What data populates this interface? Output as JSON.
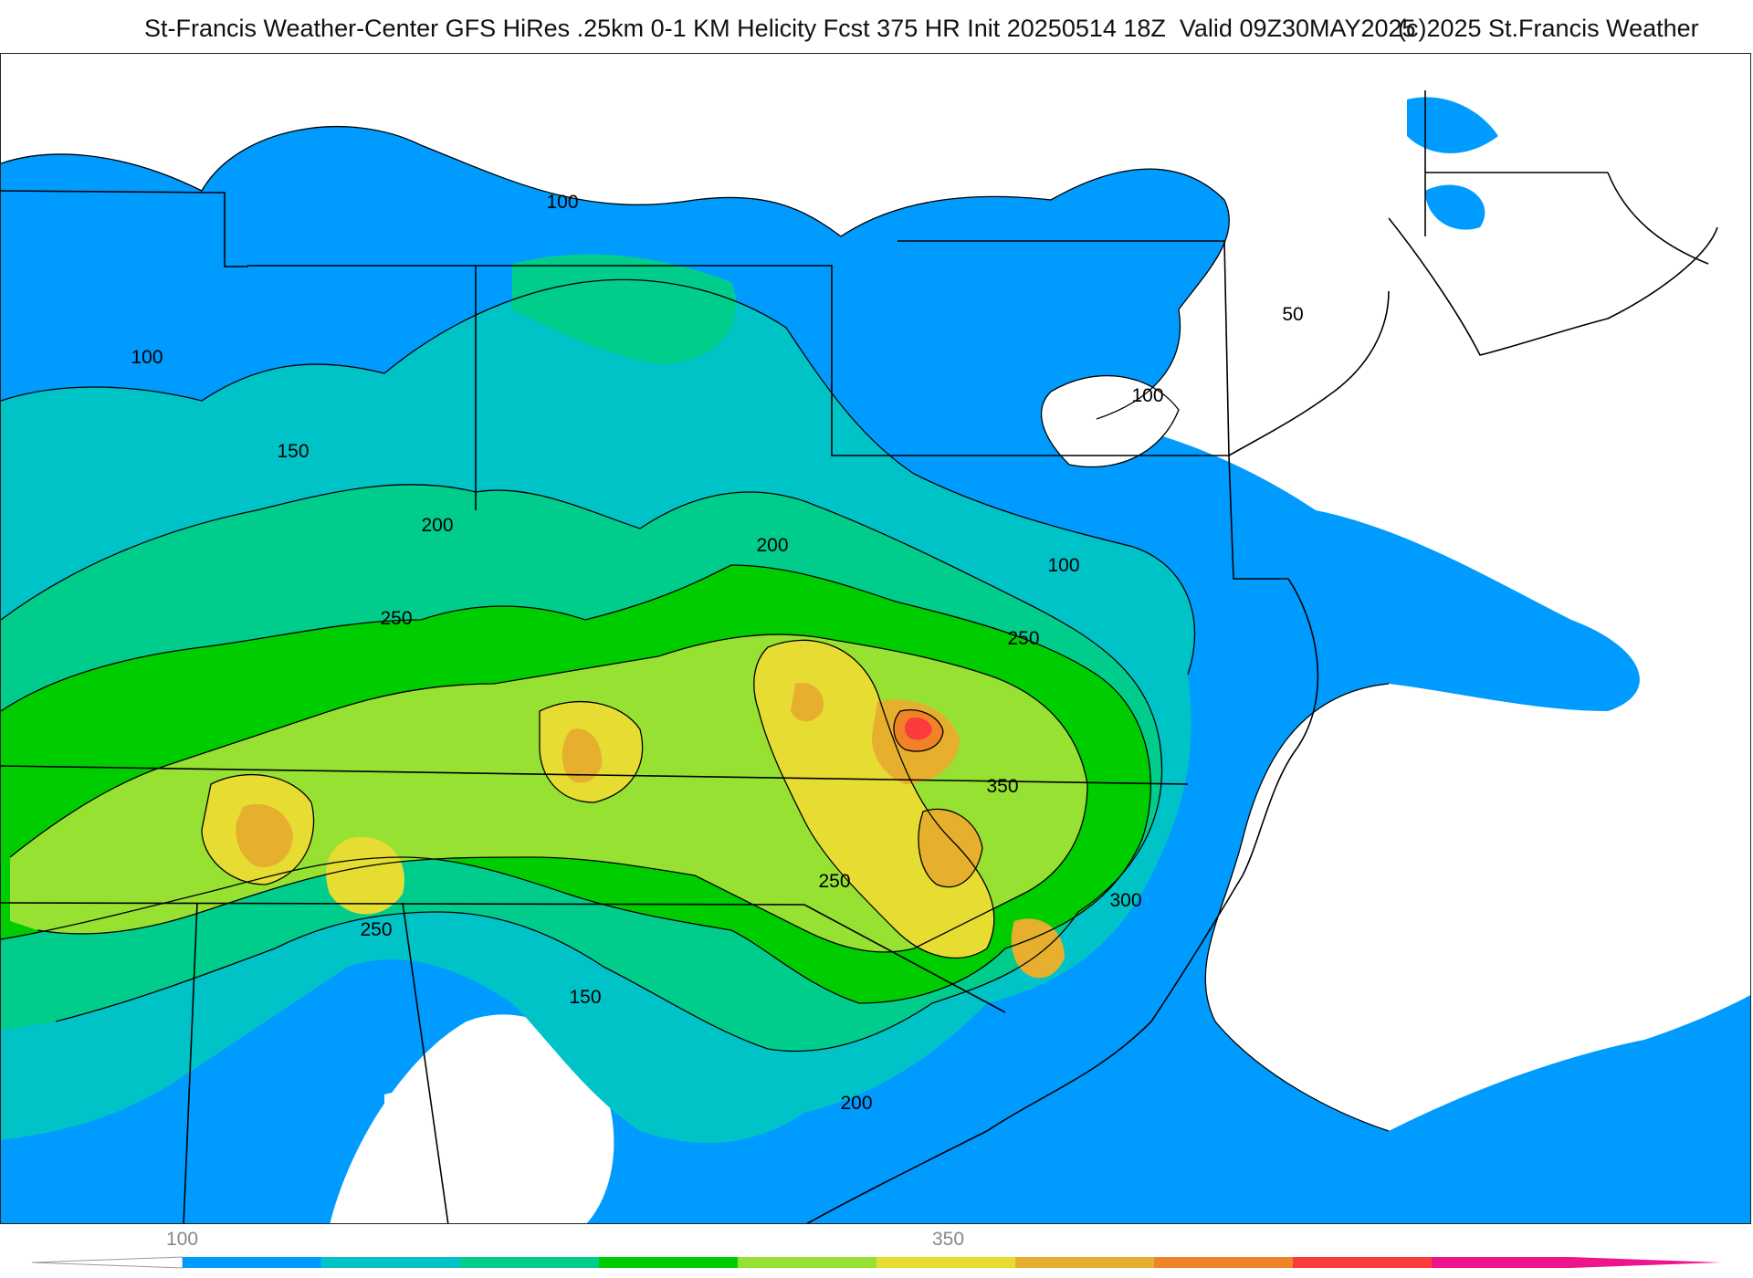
{
  "header": {
    "title": "St-Francis Weather-Center GFS HiRes .25km 0-1 KM Helicity Fcst 375 HR Init 20250514 18Z  Valid 09Z30MAY2025",
    "copyright": "(c)2025 St.Francis Weather"
  },
  "contour_labels": [
    "100",
    "100",
    "150",
    "200",
    "250",
    "200",
    "250",
    "350",
    "250",
    "300",
    "250",
    "150",
    "200",
    "100",
    "100",
    "50"
  ],
  "colorbar": {
    "tick_labels": [
      "100",
      "350"
    ],
    "colors": [
      "#009bff",
      "#00c3c8",
      "#00cd8c",
      "#00cd00",
      "#96e132",
      "#e6dc32",
      "#e6af2d",
      "#f08228",
      "#fa3c3c",
      "#f0148c"
    ]
  },
  "colors": {
    "land_outline": "#000000",
    "county_lines": "#c8c8c8",
    "background": "#ffffff"
  }
}
